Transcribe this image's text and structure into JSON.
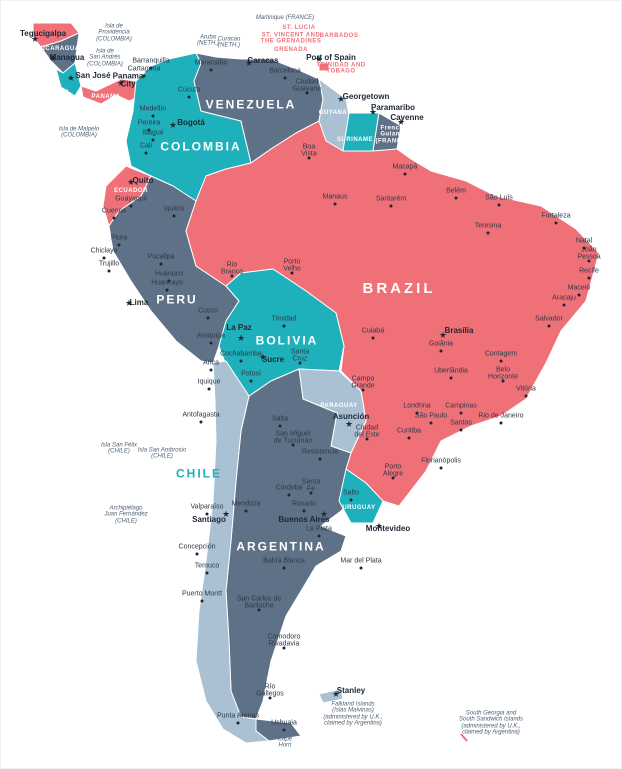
{
  "colors": {
    "brazil_ecuador_panama_honduras": "#f07078",
    "colombia_bolivia_uruguay_suriname_costarica": "#1eb1bb",
    "argentina_peru_venezuela_nicaragua": "#5f7186",
    "chile_paraguay_guyana": "#a9c1d3",
    "land_outline": "#ffffff"
  },
  "countries": [
    "HONDURAS",
    "NICARAGUA",
    "COSTA RICA",
    "PANAMA",
    "COLOMBIA",
    "VENEZUELA",
    "GUYANA",
    "SURINAME",
    "French\nGuiana\n(FRANCE)",
    "ECUADOR",
    "PERU",
    "BRAZIL",
    "BOLIVIA",
    "PARAGUAY",
    "CHILE",
    "ARGENTINA",
    "URUGUAY",
    "TRINIDAD AND\nTOBAGO",
    "BARBADOS",
    "ST. LUCIA",
    "ST. VINCENT AND\nTHE GRENADINES",
    "GRENADA"
  ],
  "capitals": [
    "Tegucigalpa",
    "Managua",
    "San José",
    "Panama\nCity",
    "Bogotá",
    "Caracas",
    "Port of Spain",
    "Georgetown",
    "Paramaribo",
    "Cayenne",
    "Quito",
    "Lima",
    "La Paz",
    "Sucre",
    "Asunción",
    "Brasília",
    "Santiago",
    "Buenos Aires",
    "Montevideo",
    "Stanley"
  ],
  "cities": [
    "Barranquilla",
    "Cartagena",
    "Cúcuta",
    "Maracaibo",
    "Barcelona",
    "Ciudad\nGuayana",
    "Medellín",
    "Pereira",
    "Ibagué",
    "Cali",
    "Boa\nVista",
    "Guayaquil",
    "Cuenca",
    "Iquitos",
    "Piura",
    "Chiclayo",
    "Trujillo",
    "Pucallpa",
    "Huánuco",
    "Huancayo",
    "Cusco",
    "Arequipa",
    "Arica",
    "Iquique",
    "Manaus",
    "Santarém",
    "Macapá",
    "Belém",
    "São Luís",
    "Fortaleza",
    "Teresina",
    "Natal",
    "João\nPessoa",
    "Recife",
    "Maceió",
    "Aracaju",
    "Salvador",
    "Porto\nVelho",
    "Rio\nBranco",
    "Cuiabá",
    "Goiânia",
    "Campo\nGrande",
    "Uberlândia",
    "Contagem",
    "Belo\nHorizonte",
    "Vitória",
    "Trinidad",
    "Cochabamba",
    "Santa\nCruz",
    "Potosí",
    "Antofagasta",
    "Salta",
    "San Miguel\nde Tucumán",
    "Resistencia",
    "Ciudad\ndel Este",
    "Londrina",
    "Campinas",
    "São Paulo",
    "Santos",
    "Rio de Janeiro",
    "Curitiba",
    "Florianópolis",
    "Porto\nAlegre",
    "Córdoba",
    "Santa\nFe",
    "Rosario",
    "Mendoza",
    "Valparaíso",
    "Salto",
    "La Plata",
    "Mar del Plata",
    "Concepción",
    "Temuco",
    "Bahía Blanca",
    "Puerto Montt",
    "San Carlos de\nBariloche",
    "Comodoro\nRivadavia",
    "Río\nGallegos",
    "Punta Arenas",
    "Ushuaia"
  ],
  "islands": [
    "Isla de\nProvidencia\n(COLOMBIA)",
    "Isla de\nSan Andrés\n(COLOMBIA)",
    "Isla de Malpelo\n(COLOMBIA)",
    "Aruba\n(NETH.)",
    "Curacao\n(NETH.)",
    "Martinique (FRANCE)",
    "Isla San Félix\n(CHILE)",
    "Isla San Ambrosio\n(CHILE)",
    "Archipiélago\nJuan Fernández\n(CHILE)",
    "Falkland Islands\n(Islas Malvinas)\n(administered by U.K.,\nclaimed by Argentina)",
    "South Georgia and\nSouth Sandwich Islands\n(administered by U.K.,\nclaimed by Argentina)",
    "Cape\nHorn"
  ]
}
